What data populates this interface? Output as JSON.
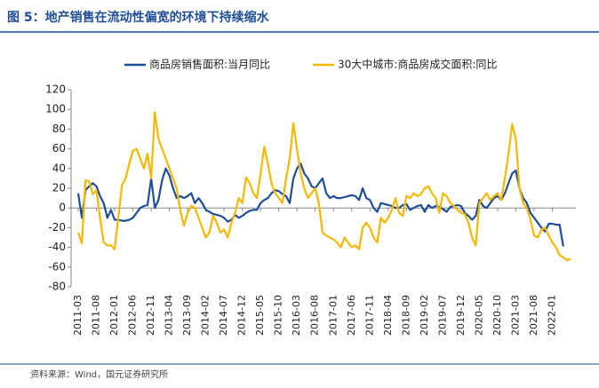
{
  "chart_data": {
    "type": "line",
    "title": "图 5：地产销售在流动性偏宽的环境下持续缩水",
    "source": "资料来源：Wind，国元证券研究所",
    "categories": [
      "2011-03",
      null,
      null,
      null,
      null,
      "2011-08",
      null,
      null,
      null,
      null,
      "2012-01",
      null,
      null,
      null,
      null,
      "2012-06",
      null,
      null,
      null,
      null,
      "2012-11",
      null,
      null,
      null,
      null,
      "2013-04",
      null,
      null,
      null,
      null,
      "2013-09",
      null,
      null,
      null,
      null,
      "2014-02",
      null,
      null,
      null,
      null,
      "2014-07",
      null,
      null,
      null,
      null,
      "2014-12",
      null,
      null,
      null,
      null,
      "2015-05",
      null,
      null,
      null,
      null,
      "2015-10",
      null,
      null,
      null,
      null,
      "2016-03",
      null,
      null,
      null,
      null,
      "2016-08",
      null,
      null,
      null,
      null,
      "2017-01",
      null,
      null,
      null,
      null,
      "2017-06",
      null,
      null,
      null,
      null,
      "2017-11",
      null,
      null,
      null,
      null,
      "2018-04",
      null,
      null,
      null,
      null,
      "2018-09",
      null,
      null,
      null,
      null,
      "2019-02",
      null,
      null,
      null,
      null,
      "2019-07",
      null,
      null,
      null,
      null,
      "2019-12",
      null,
      null,
      null,
      null,
      "2020-05",
      null,
      null,
      null,
      null,
      "2020-10",
      null,
      null,
      null,
      null,
      "2021-03",
      null,
      null,
      null,
      null,
      "2021-08",
      null,
      null,
      null,
      null,
      "2022-01",
      null,
      null,
      null,
      null,
      null
    ],
    "series": [
      {
        "name": "商品房销售面积:当月同比",
        "color": "#1f4e96",
        "values": [
          15,
          -10,
          18,
          22,
          25,
          22,
          12,
          5,
          -10,
          -2,
          -12,
          -12,
          -13,
          -13,
          -12,
          -10,
          -5,
          0,
          2,
          3,
          30,
          0,
          8,
          28,
          40,
          33,
          20,
          10,
          12,
          10,
          12,
          15,
          5,
          10,
          5,
          -2,
          -4,
          -6,
          -7,
          -8,
          -10,
          -14,
          -12,
          -7,
          -10,
          -8,
          -5,
          -3,
          -2,
          -2,
          5,
          8,
          10,
          15,
          18,
          17,
          14,
          12,
          5,
          30,
          40,
          45,
          35,
          30,
          22,
          20,
          25,
          30,
          15,
          10,
          12,
          10,
          10,
          11,
          12,
          13,
          12,
          8,
          20,
          10,
          8,
          0,
          -4,
          5,
          4,
          3,
          2,
          0,
          0,
          3,
          4,
          -2,
          0,
          2,
          3,
          -4,
          3,
          0,
          2,
          1,
          -1,
          -4,
          1,
          2,
          3,
          2,
          -5,
          -8,
          -12,
          -8,
          8,
          2,
          0,
          5,
          10,
          12,
          8,
          15,
          25,
          35,
          38,
          20,
          10,
          5,
          -5,
          -10,
          -15,
          -20,
          -24,
          -16,
          -16,
          -17,
          -17,
          -39,
          null,
          null
        ]
      },
      {
        "name": "30大中城市:商品房成交面积:同比",
        "color": "#f5b800",
        "values": [
          -25,
          -36,
          28,
          27,
          14,
          18,
          -10,
          -35,
          -38,
          -38,
          -42,
          -10,
          23,
          30,
          45,
          58,
          60,
          50,
          40,
          55,
          30,
          97,
          70,
          60,
          50,
          40,
          30,
          20,
          -3,
          -18,
          -5,
          2,
          0,
          -10,
          -20,
          -30,
          -25,
          -8,
          -15,
          -25,
          -22,
          -30,
          -15,
          -5,
          10,
          5,
          31,
          25,
          15,
          10,
          35,
          62,
          45,
          25,
          15,
          10,
          5,
          30,
          50,
          86,
          60,
          35,
          20,
          10,
          15,
          20,
          5,
          -25,
          -28,
          -30,
          -32,
          -35,
          -40,
          -30,
          -35,
          -40,
          -38,
          -42,
          -20,
          -15,
          -20,
          -30,
          -35,
          -10,
          -15,
          -10,
          -2,
          10,
          -5,
          -8,
          12,
          10,
          15,
          12,
          14,
          20,
          22,
          15,
          10,
          -5,
          15,
          12,
          5,
          2,
          -2,
          -5,
          -6,
          -15,
          -30,
          -38,
          5,
          10,
          15,
          8,
          12,
          15,
          8,
          30,
          55,
          85,
          70,
          20,
          5,
          0,
          -12,
          -28,
          -30,
          -22,
          -20,
          -28,
          -35,
          -40,
          -48,
          -50,
          -53,
          -52
        ]
      }
    ],
    "ylim": [
      -80,
      120
    ],
    "yticks": [
      -80,
      -60,
      -40,
      -20,
      0,
      20,
      40,
      60,
      80,
      100,
      120
    ]
  }
}
